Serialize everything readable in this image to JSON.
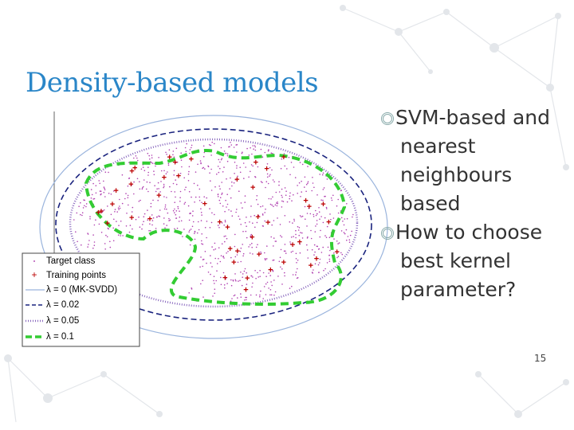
{
  "title": "Density-based models",
  "bullets": [
    "SVM-based and nearest neighbours based",
    "How to choose best kernel parameter?"
  ],
  "figure": {
    "legend": [
      "Target class",
      "Training points",
      "λ = 0 (MK-SVDD)",
      "λ = 0.02",
      "λ = 0.05",
      "λ = 0.1"
    ]
  },
  "page_number": "15"
}
